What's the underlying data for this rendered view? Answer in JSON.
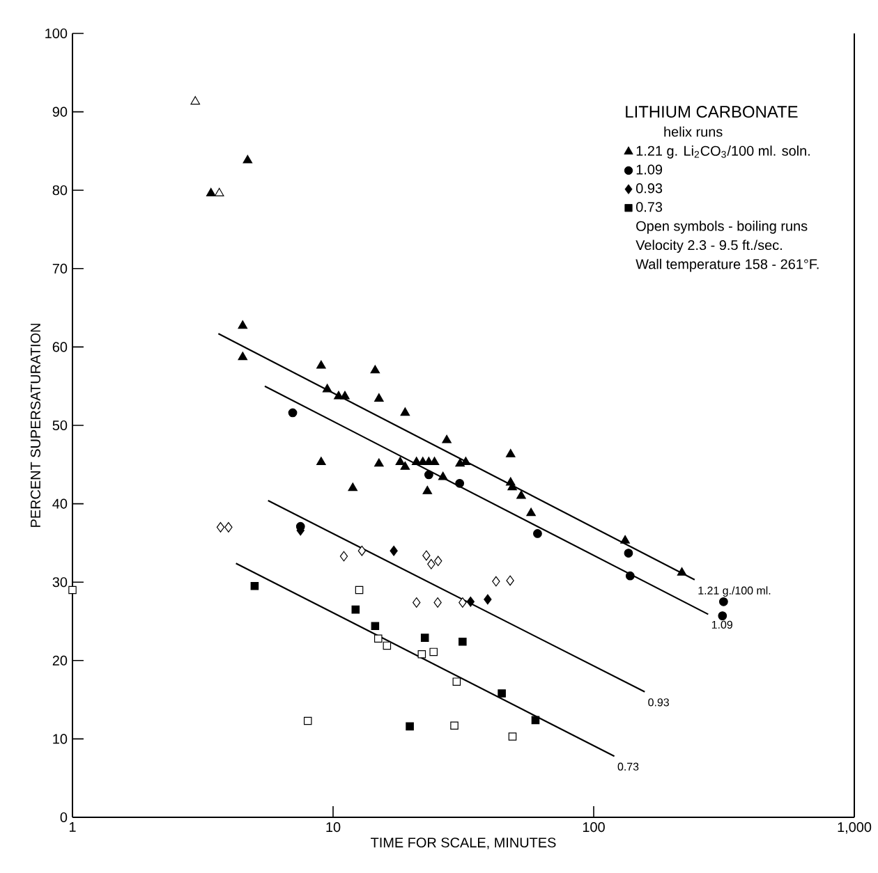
{
  "chart_data": {
    "type": "scatter",
    "xlabel": "TIME FOR SCALE, MINUTES",
    "ylabel": "PERCENT SUPERSATURATION",
    "legend_title": "LITHIUM CARBONATE",
    "annotations": [
      "helix runs",
      "Open symbols - boiling runs",
      "Velocity  2.3 - 9.5 ft./sec.",
      "Wall temperature  158 - 261°F."
    ],
    "log": "x",
    "xlim": [
      1,
      1000
    ],
    "xticks": [
      1,
      10,
      100,
      {
        "value": 1000,
        "label": "1,000"
      }
    ],
    "ylim": [
      0,
      100
    ],
    "yticks": [
      0,
      10,
      20,
      30,
      40,
      50,
      60,
      70,
      80,
      90,
      100
    ],
    "grid": false,
    "legend": "top right",
    "series": [
      {
        "name": "1.21 g. Li$_{2}$CO$_{3}$/100 ml. soln.",
        "color": "#000000",
        "marker": "triangle",
        "x": [
          3.4,
          4.7,
          4.5,
          4.5,
          9.0,
          9.5,
          10.5,
          11.1,
          14.5,
          15.0,
          18.9,
          27.3,
          48,
          9.0,
          15.0,
          18.1,
          18.9,
          20.9,
          22.1,
          23.3,
          24.5,
          30.7,
          32.3,
          26.4,
          11.9,
          23.0,
          48,
          48.7,
          52.7,
          57.5,
          132,
          218
        ],
        "values": [
          79.6,
          83.8,
          62.7,
          58.7,
          57.6,
          54.6,
          53.7,
          53.7,
          57.0,
          53.4,
          51.6,
          48.1,
          46.3,
          45.3,
          45.1,
          45.3,
          44.7,
          45.3,
          45.3,
          45.3,
          45.3,
          45.1,
          45.3,
          43.4,
          42.0,
          41.6,
          42.7,
          42.1,
          41.0,
          38.8,
          35.3,
          31.2
        ]
      },
      {
        "name": "1.09",
        "color": "#000000",
        "marker": "circle",
        "x": [
          7.0,
          7.5,
          23.3,
          30.6,
          60.9,
          136,
          138,
          315,
          312
        ],
        "values": [
          51.6,
          37.1,
          43.7,
          42.6,
          36.2,
          33.7,
          30.8,
          27.5,
          25.7
        ]
      },
      {
        "name": "0.93",
        "color": "#000000",
        "marker": "diamond",
        "x": [
          7.5,
          17.1,
          33.7,
          39.2
        ],
        "values": [
          36.6,
          34.0,
          27.5,
          27.8
        ]
      },
      {
        "name": "0.73",
        "color": "#000000",
        "marker": "square",
        "x": [
          5.0,
          12.2,
          14.5,
          22.5,
          31.4,
          19.7,
          44.4,
          59.8
        ],
        "values": [
          29.5,
          26.5,
          24.4,
          22.9,
          22.4,
          11.6,
          15.8,
          12.4
        ]
      },
      {
        "color": "#ffffff",
        "marker": "triangle",
        "x": [
          2.96,
          3.66
        ],
        "values": [
          91.3,
          79.6
        ]
      },
      {
        "color": "#ffffff",
        "marker": "diamond",
        "x": [
          3.7,
          3.97,
          11.0,
          12.9,
          22.8,
          23.8,
          25.3,
          20.9,
          25.2,
          31.4,
          42.2,
          47.8
        ],
        "values": [
          37.0,
          37.0,
          33.3,
          34.0,
          33.4,
          32.3,
          32.7,
          27.4,
          27.4,
          27.4,
          30.1,
          30.2
        ]
      },
      {
        "color": "#ffffff",
        "marker": "square",
        "x": [
          1.0,
          12.6,
          14.9,
          16.1,
          21.9,
          24.3,
          29.8,
          8.0,
          29.2,
          48.8
        ],
        "values": [
          29.0,
          29.0,
          22.8,
          21.9,
          20.8,
          21.1,
          17.3,
          12.3,
          11.7,
          10.3
        ]
      },
      {
        "type": "line",
        "name": "1.21 g./100 ml.",
        "color": "#000000",
        "marker": "none",
        "x": [
          3.63,
          244
        ],
        "values": [
          61.7,
          30.3
        ]
      },
      {
        "type": "line",
        "name": "1.09",
        "color": "#000000",
        "marker": "none",
        "x": [
          5.47,
          275
        ],
        "values": [
          55.0,
          25.9
        ]
      },
      {
        "type": "line",
        "name": "0.93",
        "color": "#000000",
        "marker": "none",
        "x": [
          5.63,
          157
        ],
        "values": [
          40.4,
          16.0
        ]
      },
      {
        "type": "line",
        "name": "0.73",
        "color": "#000000",
        "marker": "none",
        "x": [
          4.24,
          120
        ],
        "values": [
          32.4,
          7.8
        ]
      }
    ]
  }
}
